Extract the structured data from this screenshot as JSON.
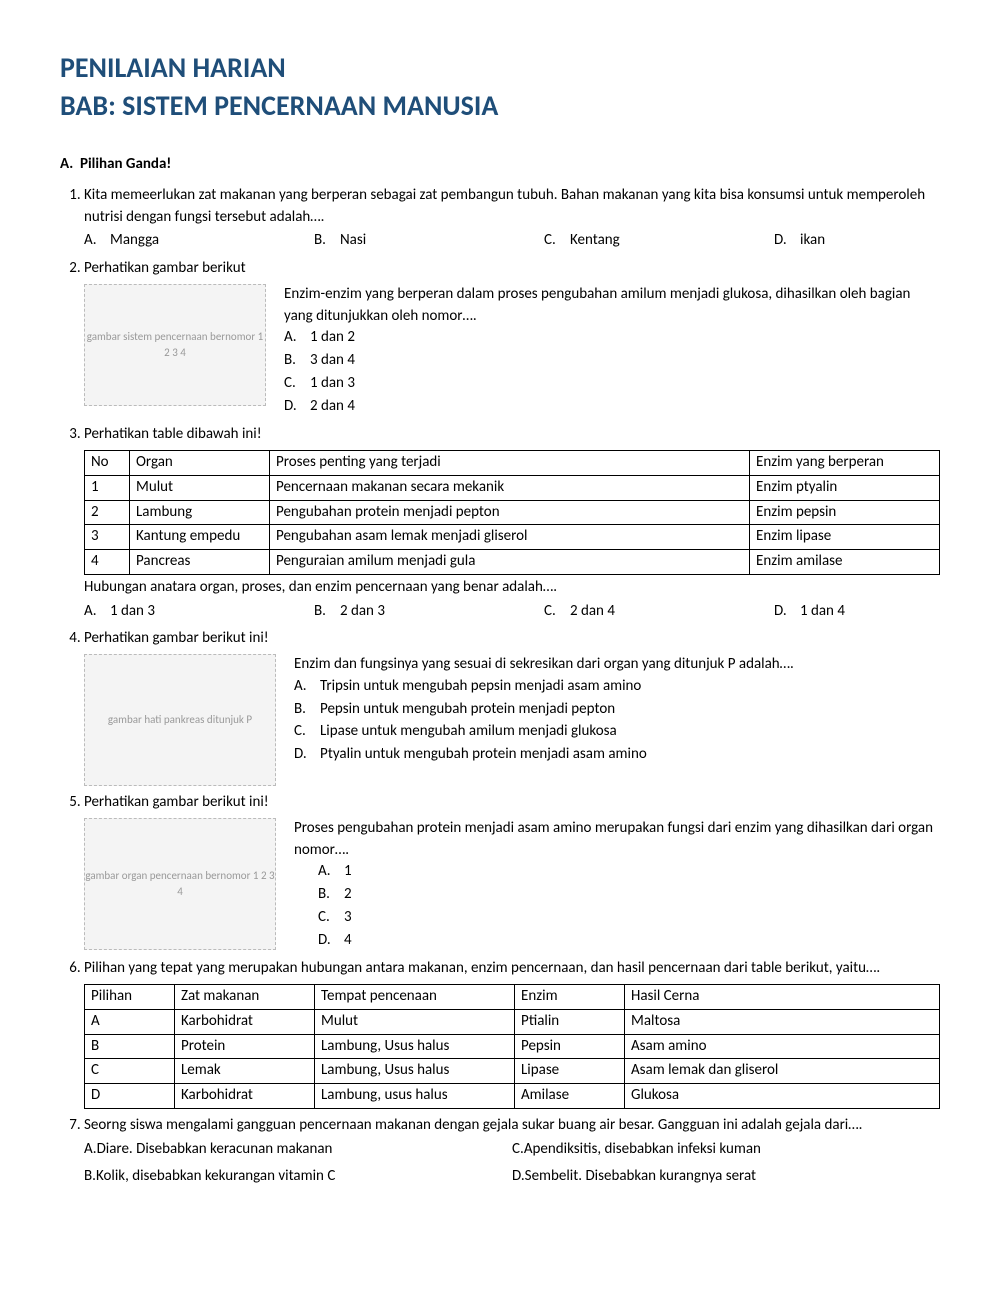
{
  "title_line1": "PENILAIAN HARIAN",
  "title_line2": "BAB: SISTEM PENCERNAAN MANUSIA",
  "section_a": "A.  Pilihan Ganda!",
  "q1": {
    "text": "Kita memeerlukan zat makanan yang berperan sebagai zat pembangun tubuh. Bahan makanan yang kita bisa konsumsi untuk memperoleh nutrisi  dengan fungsi tersebut adalah….",
    "a": "Mangga",
    "b": "Nasi",
    "c": "Kentang",
    "d": "ikan"
  },
  "q2": {
    "text": "Perhatikan gambar berikut",
    "body": "Enzim-enzim yang berperan dalam proses pengubahan amilum menjadi glukosa, dihasilkan oleh bagian yang ditunjukkan oleh nomor….",
    "a": "1 dan 2",
    "b": "3 dan 4",
    "c": "1 dan 3",
    "d": "2 dan 4",
    "img_alt": "gambar sistem pencernaan bernomor 1 2 3 4"
  },
  "q3": {
    "text": "Perhatikan table dibawah ini!",
    "cols": [
      "No",
      "Organ",
      "Proses penting yang terjadi",
      "Enzim yang berperan"
    ],
    "rows": [
      [
        "1",
        "Mulut",
        "Pencernaan makanan secara mekanik",
        "Enzim ptyalin"
      ],
      [
        "2",
        "Lambung",
        "Pengubahan protein menjadi pepton",
        "Enzim pepsin"
      ],
      [
        "3",
        "Kantung empedu",
        "Pengubahan asam lemak menjadi gliserol",
        "Enzim lipase"
      ],
      [
        "4",
        "Pancreas",
        "Penguraian amilum menjadi gula",
        "Enzim amilase"
      ]
    ],
    "after": "Hubungan anatara organ, proses, dan enzim pencernaan yang benar adalah….",
    "a": "1 dan 3",
    "b": "2 dan 3",
    "c": "2 dan 4",
    "d": "1 dan 4"
  },
  "q4": {
    "text": "Perhatikan gambar berikut ini!",
    "body": "Enzim dan fungsinya yang sesuai di sekresikan dari organ yang ditunjuk P adalah….",
    "a": "Tripsin untuk mengubah pepsin menjadi asam amino",
    "b": "Pepsin untuk mengubah protein menjadi pepton",
    "c": "Lipase untuk mengubah amilum menjadi glukosa",
    "d": "Ptyalin untuk mengubah protein menjadi asam amino",
    "img_alt": "gambar hati pankreas ditunjuk P"
  },
  "q5": {
    "text": "Perhatikan gambar berikut ini!",
    "body": "Proses pengubahan protein menjadi asam amino merupakan fungsi dari enzim yang dihasilkan dari organ nomor….",
    "a": "1",
    "b": "2",
    "c": "3",
    "d": "4",
    "img_alt": "gambar organ pencernaan bernomor 1 2 3 4"
  },
  "q6": {
    "text": "Pilihan yang tepat yang merupakan hubungan antara makanan, enzim pencernaan, dan hasil pencernaan dari table berikut, yaitu….",
    "cols": [
      "Pilihan",
      "Zat makanan",
      "Tempat pencenaan",
      "Enzim",
      "Hasil Cerna"
    ],
    "rows": [
      [
        "A",
        "Karbohidrat",
        "Mulut",
        "Ptialin",
        "Maltosa"
      ],
      [
        "B",
        "Protein",
        "Lambung, Usus halus",
        "Pepsin",
        "Asam amino"
      ],
      [
        "C",
        "Lemak",
        "Lambung, Usus halus",
        "Lipase",
        "Asam lemak dan gliserol"
      ],
      [
        "D",
        "Karbohidrat",
        "Lambung, usus halus",
        "Amilase",
        "Glukosa"
      ]
    ]
  },
  "q7": {
    "text": "Seorng siswa mengalami gangguan pencernaan makanan dengan gejala sukar buang air besar. Gangguan ini adalah gejala dari….",
    "a": "Diare. Disebabkan keracunan makanan",
    "b": "Kolik, disebabkan kekurangan vitamin C",
    "c": "Apendiksitis, disebabkan infeksi kuman",
    "d": "Sembelit. Disebabkan kurangnya serat"
  },
  "table_col_widths": {
    "q3": [
      "45px",
      "140px",
      "auto",
      "190px"
    ],
    "q6": [
      "90px",
      "140px",
      "200px",
      "110px",
      "auto"
    ]
  }
}
